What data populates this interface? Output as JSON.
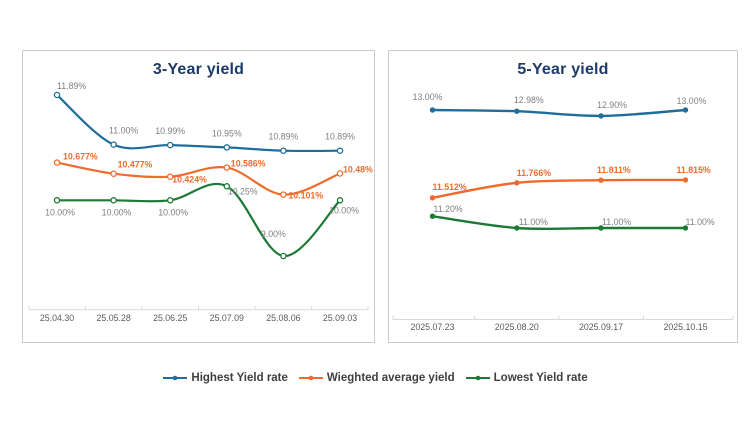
{
  "colors": {
    "highest": "#1f6d9b",
    "weighted": "#ed6c2d",
    "lowest": "#1d7a34",
    "title": "#1e3a68",
    "muted_label": "#7f7f7f",
    "axis_label": "#5a5a5a",
    "axis_line": "#d9d9d9",
    "legend_text": "#3f3f3f",
    "panel_border": "#c6ccd2"
  },
  "legend": {
    "items": [
      {
        "label": "Highest Yield rate",
        "color_key": "highest"
      },
      {
        "label": "Wieghted average yield",
        "color_key": "weighted"
      },
      {
        "label": "Lowest Yield rate",
        "color_key": "lowest"
      }
    ]
  },
  "chart_data": [
    {
      "type": "line",
      "title": "3-Year yield",
      "categories": [
        "25.04.30",
        "25.05.28",
        "25.06.25",
        "25.07.09",
        "25.08.06",
        "25.09.03"
      ],
      "grid": false,
      "legend_position": "bottom",
      "marker_style": "open",
      "ylim": [
        9.0,
        12.1
      ],
      "series": [
        {
          "name": "Highest Yield rate",
          "color_key": "highest",
          "label_style": "muted",
          "values": [
            11.89,
            11.0,
            10.99,
            10.95,
            10.89,
            10.89
          ],
          "labels": [
            "11.89%",
            "11.00%",
            "10.99%",
            "10.95%",
            "10.89%",
            "10.89%"
          ]
        },
        {
          "name": "Wieghted average yield",
          "color_key": "weighted",
          "label_style": "accent",
          "values": [
            10.677,
            10.477,
            10.424,
            10.586,
            10.101,
            10.48
          ],
          "labels": [
            "10.677%",
            "10.477%",
            "10.424%",
            "10.586%",
            "10.101%",
            "10.48%"
          ]
        },
        {
          "name": "Lowest Yield rate",
          "color_key": "lowest",
          "label_style": "muted",
          "values": [
            10.0,
            10.0,
            10.0,
            10.25,
            9.0,
            10.0
          ],
          "labels": [
            "10.00%",
            "10.00%",
            "10.00%",
            "10.25%",
            "9.00%",
            "10.00%"
          ]
        }
      ]
    },
    {
      "type": "line",
      "title": "5-Year yield",
      "categories": [
        "2025.07.23",
        "2025.08.20",
        "2025.09.17",
        "2025.10.15"
      ],
      "grid": false,
      "legend_position": "bottom",
      "marker_style": "filled",
      "ylim": [
        10.8,
        13.2
      ],
      "series": [
        {
          "name": "Highest Yield rate",
          "color_key": "highest",
          "label_style": "muted",
          "values": [
            13.0,
            12.98,
            12.9,
            13.0
          ],
          "labels": [
            "13.00%",
            "12.98%",
            "12.90%",
            "13.00%"
          ]
        },
        {
          "name": "Wieghted average yield",
          "color_key": "weighted",
          "label_style": "accent",
          "values": [
            11.512,
            11.766,
            11.811,
            11.815
          ],
          "labels": [
            "11.512%",
            "11.766%",
            "11.811%",
            "11.815%"
          ]
        },
        {
          "name": "Lowest Yield rate",
          "color_key": "lowest",
          "label_style": "muted",
          "values": [
            11.2,
            11.0,
            11.0,
            11.0
          ],
          "labels": [
            "11.20%",
            "11.00%",
            "11.00%",
            "11.00%"
          ]
        }
      ]
    }
  ]
}
